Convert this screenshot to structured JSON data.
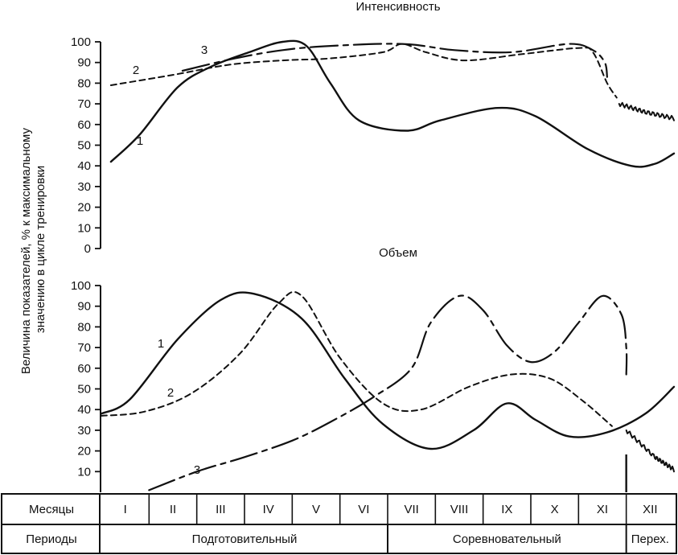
{
  "chart_data": [
    {
      "type": "line",
      "title": "Интенсивность",
      "ylabel": "Величина показателей, % к максимальному значению в цикле тренировки",
      "ylim": [
        0,
        100
      ],
      "yticks": [
        0,
        10,
        20,
        30,
        40,
        50,
        60,
        70,
        80,
        90,
        100
      ],
      "x_unit": "месяц (1 = I … 12 = XII)",
      "series": [
        {
          "name": "1",
          "style": "solid",
          "points": [
            [
              0.2,
              42
            ],
            [
              0.8,
              55
            ],
            [
              1.6,
              78
            ],
            [
              2.3,
              88
            ],
            [
              3.1,
              95
            ],
            [
              3.8,
              100
            ],
            [
              4.3,
              98
            ],
            [
              4.8,
              80
            ],
            [
              5.4,
              62
            ],
            [
              6.4,
              57
            ],
            [
              7.1,
              62
            ],
            [
              8.3,
              68
            ],
            [
              9.1,
              64
            ],
            [
              10.2,
              48
            ],
            [
              11.1,
              40
            ],
            [
              11.6,
              41
            ],
            [
              12.0,
              46
            ]
          ]
        },
        {
          "name": "2",
          "style": "dashed",
          "points": [
            [
              0.2,
              79
            ],
            [
              1.5,
              84
            ],
            [
              2.7,
              89
            ],
            [
              3.8,
              91
            ],
            [
              4.8,
              92
            ],
            [
              5.9,
              95
            ],
            [
              6.3,
              99
            ],
            [
              6.8,
              95
            ],
            [
              7.6,
              91
            ],
            [
              8.8,
              94
            ],
            [
              10.0,
              97
            ],
            [
              10.3,
              95
            ],
            [
              10.6,
              80
            ],
            [
              10.8,
              73
            ]
          ]
        },
        {
          "name": "3",
          "style": "dash-dot",
          "points": [
            [
              1.7,
              86
            ],
            [
              2.8,
              92
            ],
            [
              3.8,
              96
            ],
            [
              4.8,
              98
            ],
            [
              6.3,
              99
            ],
            [
              7.4,
              96
            ],
            [
              8.6,
              95
            ],
            [
              9.8,
              99
            ],
            [
              10.3,
              96
            ],
            [
              10.55,
              90
            ],
            [
              10.6,
              83
            ]
          ]
        },
        {
          "name": "",
          "style": "wavy",
          "points": [
            [
              10.85,
              70
            ],
            [
              11.4,
              66
            ],
            [
              12.0,
              63
            ]
          ]
        }
      ]
    },
    {
      "type": "line",
      "title": "Объем",
      "ylim": [
        0,
        100
      ],
      "yticks": [
        10,
        20,
        30,
        40,
        50,
        60,
        70,
        80,
        90,
        100
      ],
      "x_unit": "месяц (1 = I … 12 = XII)",
      "series": [
        {
          "name": "1",
          "style": "solid",
          "points": [
            [
              0,
              38
            ],
            [
              0.6,
              45
            ],
            [
              1.6,
              74
            ],
            [
              2.5,
              93
            ],
            [
              3.2,
              96
            ],
            [
              4.2,
              84
            ],
            [
              5.1,
              55
            ],
            [
              5.9,
              33
            ],
            [
              6.9,
              21
            ],
            [
              7.8,
              30
            ],
            [
              8.5,
              43
            ],
            [
              9.1,
              35
            ],
            [
              9.8,
              27
            ],
            [
              10.6,
              29
            ],
            [
              11.4,
              38
            ],
            [
              12.0,
              51
            ]
          ]
        },
        {
          "name": "2",
          "style": "dashed",
          "points": [
            [
              0,
              37
            ],
            [
              0.9,
              39
            ],
            [
              1.9,
              48
            ],
            [
              2.9,
              67
            ],
            [
              3.7,
              91
            ],
            [
              4.2,
              95
            ],
            [
              5.0,
              65
            ],
            [
              5.9,
              43
            ],
            [
              6.7,
              40
            ],
            [
              7.7,
              51
            ],
            [
              8.6,
              57
            ],
            [
              9.4,
              55
            ],
            [
              10.1,
              44
            ],
            [
              10.7,
              32
            ]
          ]
        },
        {
          "name": "3",
          "style": "dash-dot",
          "points": [
            [
              1.0,
              1
            ],
            [
              2.0,
              10
            ],
            [
              3.0,
              17
            ],
            [
              4.0,
              25
            ],
            [
              4.8,
              34
            ],
            [
              5.7,
              46
            ],
            [
              6.5,
              60
            ],
            [
              6.9,
              82
            ],
            [
              7.5,
              95
            ],
            [
              8.0,
              88
            ],
            [
              8.5,
              71
            ],
            [
              9.0,
              63
            ],
            [
              9.5,
              68
            ],
            [
              10.0,
              82
            ],
            [
              10.5,
              95
            ],
            [
              10.9,
              86
            ],
            [
              11.0,
              70
            ],
            [
              11.0,
              57
            ]
          ]
        },
        {
          "name": "",
          "style": "wavy",
          "points": [
            [
              11.0,
              30
            ],
            [
              11.6,
              17
            ],
            [
              12.0,
              11
            ]
          ]
        }
      ]
    }
  ],
  "table": {
    "months_label": "Месяцы",
    "periods_label": "Периоды",
    "months": [
      "I",
      "II",
      "III",
      "IV",
      "V",
      "VI",
      "VII",
      "VIII",
      "IX",
      "X",
      "XI",
      "XII"
    ],
    "periods": [
      {
        "label": "Подготовительный",
        "from": 0,
        "to": 6
      },
      {
        "label": "Соревновательный",
        "from": 6,
        "to": 11
      },
      {
        "label": "Перех.",
        "from": 11,
        "to": 12
      }
    ]
  }
}
